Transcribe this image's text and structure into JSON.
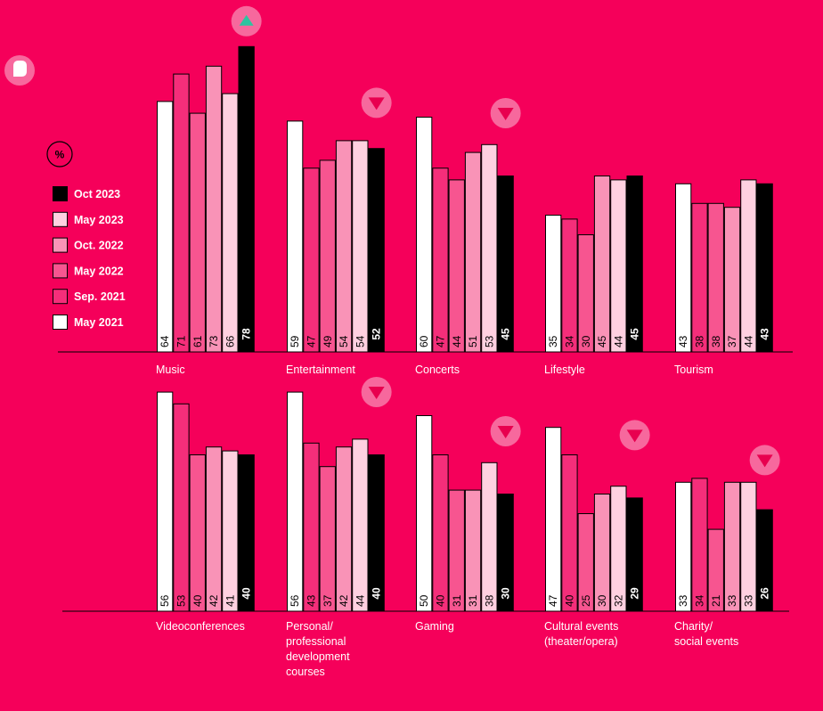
{
  "unit_label": "%",
  "colors": {
    "background": "#f5005a",
    "trend_marker": "#f7689d",
    "trend_up_arrow": "#2ec4a0",
    "trend_down_arrow": "#e8004f"
  },
  "chart_data": {
    "type": "bar",
    "ylabel": "%",
    "ylim": [
      0,
      80
    ],
    "series": [
      {
        "name": "May 2021",
        "color": "#ffffff"
      },
      {
        "name": "Sep. 2021",
        "color": "#f52e7a"
      },
      {
        "name": "May 2022",
        "color": "#f75590"
      },
      {
        "name": "Oct. 2022",
        "color": "#f993b7"
      },
      {
        "name": "May 2023",
        "color": "#ffd0e0"
      },
      {
        "name": "Oct 2023",
        "color": "#000000"
      }
    ],
    "legend_order": [
      "Oct 2023",
      "May 2023",
      "Oct. 2022",
      "May 2022",
      "Sep. 2021",
      "May 2021"
    ],
    "legend_position": "left",
    "panels": [
      {
        "category": "Music",
        "values": [
          64,
          71,
          61,
          73,
          66,
          78
        ],
        "trend": "up"
      },
      {
        "category": "Entertainment",
        "values": [
          59,
          47,
          49,
          54,
          54,
          52
        ],
        "trend": "down"
      },
      {
        "category": "Concerts",
        "values": [
          60,
          47,
          44,
          51,
          53,
          45
        ],
        "trend": "down"
      },
      {
        "category": "Lifestyle",
        "values": [
          35,
          34,
          30,
          45,
          44,
          45
        ],
        "trend": "none"
      },
      {
        "category": "Tourism",
        "values": [
          43,
          38,
          38,
          37,
          44,
          43
        ],
        "trend": "none"
      },
      {
        "category": "Videoconferences",
        "values": [
          56,
          53,
          40,
          42,
          41,
          40
        ],
        "trend": "none"
      },
      {
        "category": "Personal/ professional development courses",
        "label_lines": [
          "Personal/",
          "professional",
          "development",
          "courses"
        ],
        "values": [
          56,
          43,
          37,
          42,
          44,
          40
        ],
        "trend": "down"
      },
      {
        "category": "Gaming",
        "values": [
          50,
          40,
          31,
          31,
          38,
          30
        ],
        "trend": "down"
      },
      {
        "category": "Cultural events (theater/opera)",
        "label_lines": [
          "Cultural events",
          "(theater/opera)"
        ],
        "values": [
          47,
          40,
          25,
          30,
          32,
          29
        ],
        "trend": "down"
      },
      {
        "category": "Charity/ social events",
        "label_lines": [
          "Charity/",
          "social events"
        ],
        "values": [
          33,
          34,
          21,
          33,
          33,
          26
        ],
        "trend": "down"
      }
    ]
  }
}
